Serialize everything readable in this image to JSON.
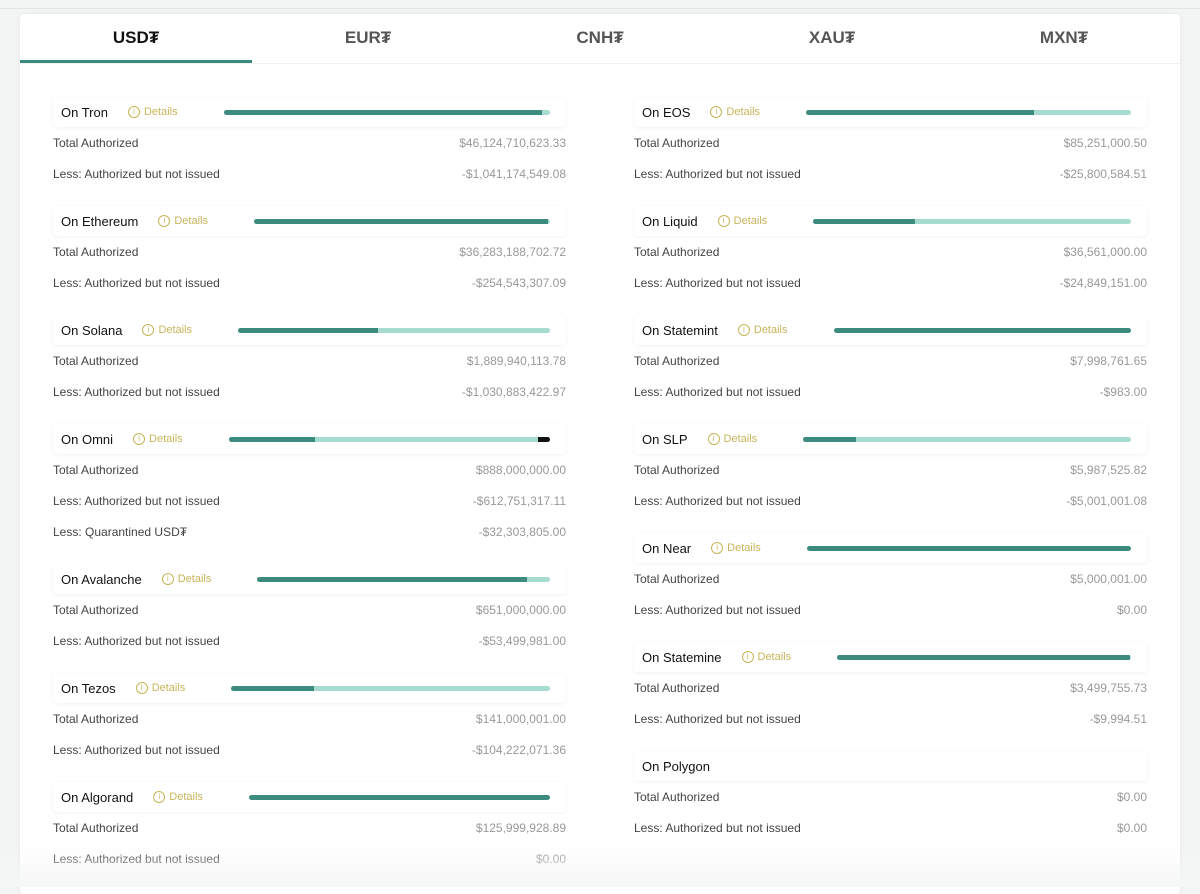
{
  "tabs": [
    "USD₮",
    "EUR₮",
    "CNH₮",
    "XAU₮",
    "MXN₮"
  ],
  "active_tab": 0,
  "details_label": "Details",
  "colors": {
    "issued": "#3d8a7e",
    "authorized": "#a6dccf",
    "quarantined": "#111111",
    "details": "#c8b45a"
  },
  "left": [
    {
      "title": "On Tron",
      "bar": 0.977,
      "rows": [
        [
          "Total Authorized",
          "$46,124,710,623.33"
        ],
        [
          "Less: Authorized but not issued",
          "-$1,041,174,549.08"
        ]
      ]
    },
    {
      "title": "On Ethereum",
      "bar": 0.993,
      "rows": [
        [
          "Total Authorized",
          "$36,283,188,702.72"
        ],
        [
          "Less: Authorized but not issued",
          "-$254,543,307.09"
        ]
      ]
    },
    {
      "title": "On Solana",
      "bar": 0.45,
      "rows": [
        [
          "Total Authorized",
          "$1,889,940,113.78"
        ],
        [
          "Less: Authorized but not issued",
          "-$1,030,883,422.97"
        ]
      ]
    },
    {
      "title": "On Omni",
      "bar": 0.27,
      "quarantined": 0.036,
      "rows": [
        [
          "Total Authorized",
          "$888,000,000.00"
        ],
        [
          "Less: Authorized but not issued",
          "-$612,751,317.11"
        ],
        [
          "Less: Quarantined USD₮",
          "-$32,303,805.00"
        ]
      ]
    },
    {
      "title": "On Avalanche",
      "bar": 0.92,
      "rows": [
        [
          "Total Authorized",
          "$651,000,000.00"
        ],
        [
          "Less: Authorized but not issued",
          "-$53,499,981.00"
        ]
      ]
    },
    {
      "title": "On Tezos",
      "bar": 0.26,
      "rows": [
        [
          "Total Authorized",
          "$141,000,001.00"
        ],
        [
          "Less: Authorized but not issued",
          "-$104,222,071.36"
        ]
      ]
    },
    {
      "title": "On Algorand",
      "bar": 1.0,
      "rows": [
        [
          "Total Authorized",
          "$125,999,928.89"
        ],
        [
          "Less: Authorized but not issued",
          "$0.00"
        ]
      ]
    }
  ],
  "right": [
    {
      "title": "On EOS",
      "bar": 0.7,
      "rows": [
        [
          "Total Authorized",
          "$85,251,000.50"
        ],
        [
          "Less: Authorized but not issued",
          "-$25,800,584.51"
        ]
      ]
    },
    {
      "title": "On Liquid",
      "bar": 0.32,
      "rows": [
        [
          "Total Authorized",
          "$36,561,000.00"
        ],
        [
          "Less: Authorized but not issued",
          "-$24,849,151.00"
        ]
      ]
    },
    {
      "title": "On Statemint",
      "bar": 1.0,
      "rows": [
        [
          "Total Authorized",
          "$7,998,761.65"
        ],
        [
          "Less: Authorized but not issued",
          "-$983.00"
        ]
      ]
    },
    {
      "title": "On SLP",
      "bar": 0.16,
      "rows": [
        [
          "Total Authorized",
          "$5,987,525.82"
        ],
        [
          "Less: Authorized but not issued",
          "-$5,001,001.08"
        ]
      ]
    },
    {
      "title": "On Near",
      "bar": 1.0,
      "rows": [
        [
          "Total Authorized",
          "$5,000,001.00"
        ],
        [
          "Less: Authorized but not issued",
          "$0.00"
        ]
      ]
    },
    {
      "title": "On Statemine",
      "bar": 0.997,
      "rows": [
        [
          "Total Authorized",
          "$3,499,755.73"
        ],
        [
          "Less: Authorized but not issued",
          "-$9,994.51"
        ]
      ]
    },
    {
      "title": "On Polygon",
      "rows": [
        [
          "Total Authorized",
          "$0.00"
        ],
        [
          "Less: Authorized but not issued",
          "$0.00"
        ]
      ]
    }
  ]
}
